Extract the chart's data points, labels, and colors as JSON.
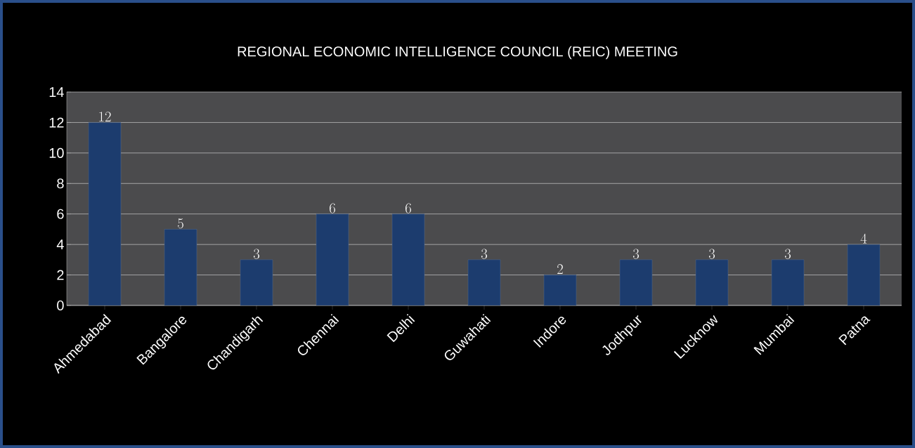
{
  "chart_data": {
    "type": "bar",
    "title": "REGIONAL ECONOMIC INTELLIGENCE COUNCIL (REIC) MEETING",
    "categories": [
      "Ahmedabad",
      "Bangalore",
      "Chandigarh",
      "Chennai",
      "Delhi",
      "Guwahati",
      "Indore",
      "Jodhpur",
      "Lucknow",
      "Mumbai",
      "Patna"
    ],
    "values": [
      12,
      5,
      3,
      6,
      6,
      3,
      2,
      3,
      3,
      3,
      4
    ],
    "color": "#1c3c6e",
    "ylim": [
      0,
      14
    ],
    "yticks": [
      0,
      2,
      4,
      6,
      8,
      10,
      12,
      14
    ],
    "grid": "y",
    "data_labels": true
  }
}
